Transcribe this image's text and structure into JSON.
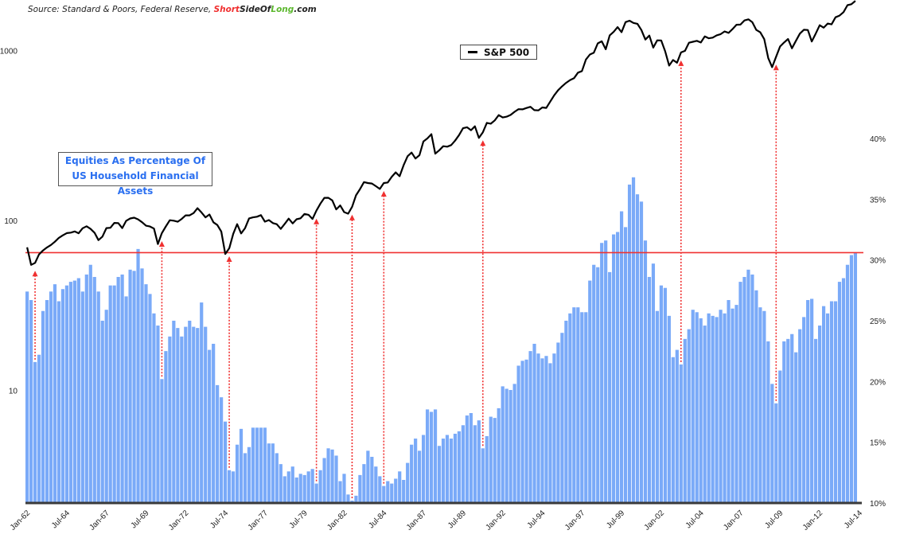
{
  "source": {
    "prefix": "Source: Standard & Poors, Federal Reserve, ",
    "brand_short": "Short",
    "brand_sideof": "SideOf",
    "brand_long": "Long",
    "brand_com": ".com"
  },
  "colors": {
    "bars": "#7aaaf8",
    "line": "#000000",
    "threshold": "#f03030",
    "arrows": "#f03030",
    "brand_red": "#f03030",
    "brand_green": "#5cb82e",
    "title": "#2a6ff0"
  },
  "chart_data": {
    "type": "bar+line",
    "title": "Equities As Percentage Of US Household Financial Assets",
    "frequency": "quarterly",
    "start": "1962-Q1",
    "end": "2014-Q2",
    "x_tick_labels": [
      "Jan-62",
      "Jul-64",
      "Jan-67",
      "Jul-69",
      "Jan-72",
      "Jul-74",
      "Jan-77",
      "Jul-79",
      "Jan-82",
      "Jul-84",
      "Jan-87",
      "Jul-89",
      "Jan-92",
      "Jul-94",
      "Jan-97",
      "Jul-99",
      "Jan-02",
      "Jul-04",
      "Jan-07",
      "Jul-09",
      "Jan-12",
      "Jul-14"
    ],
    "right_axis": {
      "scale": "linear",
      "range": [
        10,
        40
      ],
      "ticks": [
        "10%",
        "15%",
        "20%",
        "25%",
        "30%",
        "35%",
        "40%"
      ],
      "tick_values": [
        10,
        15,
        20,
        25,
        30,
        35,
        40
      ]
    },
    "left_axis": {
      "scale": "log",
      "range": [
        2.2,
        2000
      ],
      "ticks": [
        "10",
        "100",
        "1000"
      ],
      "tick_values": [
        10,
        100,
        1000
      ]
    },
    "bars": {
      "axis": "right",
      "unit": "%",
      "values": [
        27.4,
        26.7,
        21.6,
        22.2,
        25.8,
        26.7,
        27.4,
        28.0,
        26.6,
        27.6,
        27.9,
        28.2,
        28.3,
        28.5,
        27.4,
        28.8,
        29.6,
        28.6,
        27.4,
        25.0,
        25.9,
        27.9,
        27.9,
        28.6,
        28.8,
        27.0,
        29.2,
        29.1,
        30.9,
        29.3,
        28.0,
        27.2,
        25.6,
        24.6,
        20.2,
        22.5,
        23.7,
        25.0,
        24.4,
        23.7,
        24.5,
        25.0,
        24.5,
        24.4,
        26.5,
        24.5,
        22.6,
        23.1,
        19.7,
        18.7,
        16.7,
        12.7,
        12.6,
        14.8,
        16.1,
        14.1,
        14.6,
        16.2,
        16.2,
        16.2,
        16.2,
        14.9,
        14.9,
        14.1,
        13.2,
        12.2,
        12.6,
        13.0,
        12.1,
        12.4,
        12.3,
        12.6,
        12.8,
        11.6,
        12.7,
        13.7,
        14.5,
        14.4,
        13.9,
        11.8,
        12.4,
        10.7,
        10.2,
        10.6,
        12.3,
        13.2,
        14.3,
        13.8,
        13.0,
        12.2,
        11.4,
        11.8,
        11.6,
        12.0,
        12.6,
        11.9,
        13.3,
        14.8,
        15.3,
        14.3,
        15.6,
        17.7,
        17.5,
        17.7,
        14.7,
        15.3,
        15.6,
        15.3,
        15.7,
        15.9,
        16.4,
        17.2,
        17.4,
        16.4,
        16.8,
        14.5,
        15.5,
        17.1,
        17.0,
        17.8,
        19.6,
        19.4,
        19.3,
        19.8,
        21.3,
        21.7,
        21.8,
        22.5,
        23.1,
        22.3,
        21.9,
        22.1,
        21.5,
        22.3,
        23.2,
        24.0,
        25.0,
        25.6,
        26.1,
        26.1,
        25.7,
        25.7,
        28.3,
        29.6,
        29.4,
        31.4,
        31.6,
        29.0,
        32.1,
        32.3,
        34.0,
        32.7,
        36.2,
        36.8,
        35.4,
        34.8,
        31.6,
        28.6,
        29.7,
        25.8,
        27.9,
        27.7,
        25.4,
        22.0,
        22.6,
        21.4,
        23.5,
        24.3,
        25.9,
        25.7,
        25.2,
        24.6,
        25.6,
        25.4,
        25.3,
        25.9,
        25.6,
        26.7,
        26.0,
        26.3,
        28.2,
        28.6,
        29.2,
        28.8,
        27.5,
        26.1,
        25.8,
        23.3,
        19.8,
        18.2,
        20.9,
        23.3,
        23.5,
        23.9,
        22.4,
        24.3,
        25.3,
        26.7,
        26.8,
        23.5,
        24.6,
        26.2,
        25.6,
        26.6,
        26.6,
        28.2,
        28.5,
        29.6,
        30.4,
        30.6
      ]
    },
    "series": [
      {
        "name": "S&P 500",
        "axis": "left",
        "values": [
          69.5,
          54.8,
          56.3,
          63.1,
          66.6,
          69.4,
          71.7,
          75.0,
          79.0,
          81.7,
          84.2,
          84.8,
          86.2,
          84.1,
          90.0,
          92.4,
          89.2,
          84.7,
          76.6,
          80.3,
          90.2,
          90.6,
          96.7,
          96.5,
          90.2,
          99.6,
          102.7,
          103.9,
          101.5,
          97.7,
          93.1,
          92.1,
          89.6,
          72.7,
          84.2,
          92.2,
          100.3,
          99.7,
          98.3,
          102.1,
          107.2,
          107.1,
          110.6,
          118.1,
          111.5,
          104.3,
          108.4,
          97.6,
          94.0,
          86.0,
          63.5,
          68.6,
          83.4,
          95.2,
          83.9,
          90.2,
          102.8,
          104.3,
          105.2,
          107.5,
          98.4,
          100.5,
          96.5,
          95.1,
          89.2,
          95.5,
          102.5,
          96.1,
          101.6,
          102.9,
          109.3,
          107.9,
          102.1,
          114.2,
          125.5,
          135.8,
          136.0,
          131.2,
          116.2,
          122.6,
          112.0,
          109.6,
          120.4,
          140.6,
          153.0,
          168.1,
          166.1,
          164.9,
          159.2,
          153.2,
          166.1,
          167.2,
          180.7,
          191.9,
          182.1,
          211.3,
          238.9,
          250.8,
          231.3,
          242.2,
          291.7,
          304.0,
          321.8,
          247.1,
          258.9,
          273.5,
          271.9,
          277.7,
          294.9,
          318.0,
          349.2,
          353.4,
          339.9,
          358.0,
          306.1,
          330.2,
          375.2,
          371.2,
          387.9,
          417.1,
          403.7,
          408.1,
          417.8,
          435.7,
          451.7,
          450.5,
          458.9,
          466.5,
          445.8,
          444.3,
          462.7,
          459.3,
          500.7,
          544.8,
          584.4,
          615.9,
          645.5,
          670.6,
          687.3,
          740.7,
          757.1,
          885.1,
          947.3,
          970.4,
          1101.8,
          1133.8,
          1017.0,
          1229.2,
          1286.4,
          1372.7,
          1282.7,
          1469.3,
          1498.6,
          1454.6,
          1436.5,
          1320.3,
          1160.3,
          1224.4,
          1040.9,
          1148.1,
          1147.4,
          989.8,
          815.3,
          879.8,
          848.2,
          974.5,
          996.0,
          1111.9,
          1126.2,
          1140.8,
          1114.6,
          1211.9,
          1180.6,
          1191.3,
          1228.8,
          1248.3,
          1294.8,
          1270.2,
          1335.9,
          1418.3,
          1420.9,
          1503.4,
          1526.8,
          1468.4,
          1322.7,
          1280.0,
          1166.4,
          903.3,
          797.9,
          919.3,
          1057.1,
          1115.1,
          1169.4,
          1030.7,
          1141.2,
          1257.6,
          1325.8,
          1320.6,
          1131.4,
          1257.6,
          1408.5,
          1362.2,
          1440.7,
          1426.2,
          1569.2,
          1606.3,
          1681.6,
          1848.4,
          1872.3,
          1960.2
        ]
      }
    ],
    "threshold_line": {
      "axis": "right",
      "value": 30.6
    },
    "arrow_quarters": [
      "1962-Q3",
      "1970-Q3",
      "1974-Q4",
      "1980-Q2",
      "1982-Q3",
      "1984-Q3",
      "1990-Q4",
      "2003-Q2",
      "2009-Q2"
    ],
    "legend": {
      "label": "S&P 500",
      "placement": "top-center"
    },
    "grid": false
  }
}
